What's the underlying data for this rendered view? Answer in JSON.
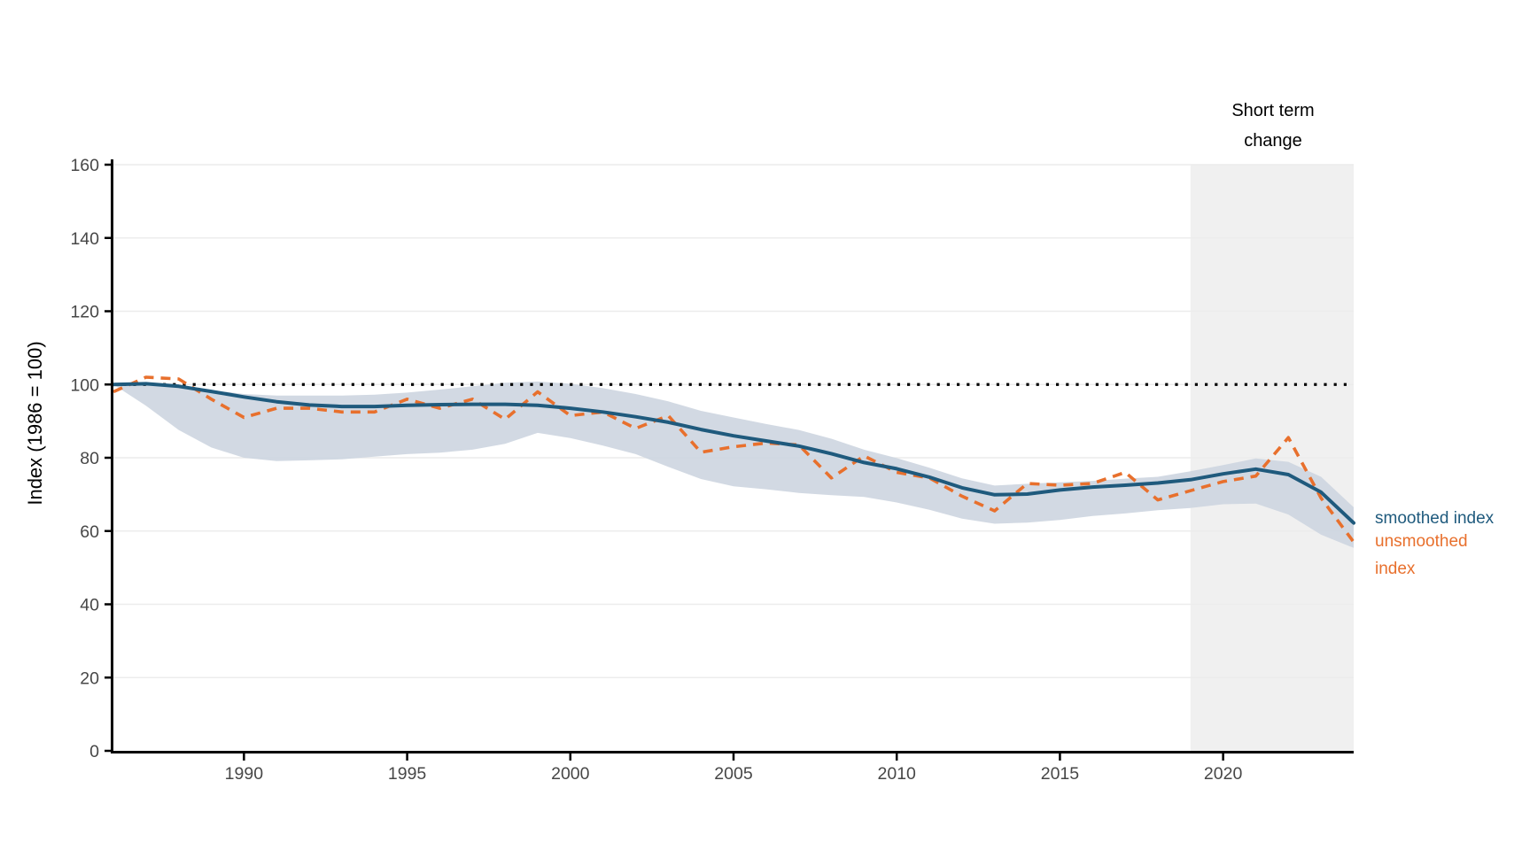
{
  "annotation": {
    "line1": "Short term",
    "line2": "change"
  },
  "legend": {
    "smoothed_label": "smoothed index",
    "unsmoothed_label_line1": "unsmoothed",
    "unsmoothed_label_line2": "index"
  },
  "axis": {
    "y_title": "Index (1986 = 100)"
  },
  "colors": {
    "smoothed_line": "#1f5a7d",
    "unsmoothed_line": "#e8702d",
    "legend_smoothed_text": "#1f5a7d",
    "legend_unsmoothed_text": "#e8702d",
    "confidence_band": "#cdd5e0",
    "short_term_region": "#f0f0f0",
    "gridline": "#ececec",
    "axis_line": "#000000",
    "tick_label": "#474747",
    "reference_line": "#000000"
  },
  "chart_data": {
    "type": "line",
    "title": "",
    "xlabel": "",
    "ylabel": "Index (1986 = 100)",
    "xlim": [
      1986,
      2024
    ],
    "ylim": [
      0,
      160
    ],
    "x_ticks": [
      1990,
      1995,
      2000,
      2005,
      2010,
      2015,
      2020
    ],
    "y_ticks": [
      0,
      20,
      40,
      60,
      80,
      100,
      120,
      140,
      160
    ],
    "grid": "horizontal",
    "legend_position": "right",
    "reference_line": {
      "value": 100,
      "style": "dotted"
    },
    "shaded_region": {
      "label": "Short term change",
      "x_start": 2019,
      "x_end": 2024
    },
    "x": [
      1986,
      1987,
      1988,
      1989,
      1990,
      1991,
      1992,
      1993,
      1994,
      1995,
      1996,
      1997,
      1998,
      1999,
      2000,
      2001,
      2002,
      2003,
      2004,
      2005,
      2006,
      2007,
      2008,
      2009,
      2010,
      2011,
      2012,
      2013,
      2014,
      2015,
      2016,
      2017,
      2018,
      2019,
      2020,
      2021,
      2022,
      2023,
      2024
    ],
    "series": [
      {
        "name": "smoothed index",
        "style": "solid",
        "values": [
          100,
          100.2,
          99.5,
          98.1,
          96.6,
          95.3,
          94.4,
          94.0,
          94.0,
          94.3,
          94.5,
          94.6,
          94.6,
          94.3,
          93.5,
          92.5,
          91.2,
          89.7,
          87.7,
          86.0,
          84.6,
          83.2,
          81.1,
          78.7,
          77.0,
          74.7,
          71.8,
          69.9,
          70.1,
          71.2,
          72.0,
          72.5,
          73.1,
          74.0,
          75.6,
          76.9,
          75.4,
          70.6,
          62.2
        ]
      },
      {
        "name": "unsmoothed index",
        "style": "dashed",
        "values": [
          98,
          102,
          101.5,
          96,
          91,
          93.5,
          93.5,
          92.5,
          92.5,
          96,
          93.5,
          96,
          90.5,
          98,
          91.5,
          92.5,
          88,
          91.5,
          81.5,
          83,
          84,
          83.5,
          74.5,
          80.5,
          76,
          74.5,
          69.5,
          65.5,
          73,
          72.5,
          73,
          76,
          68.5,
          71,
          73.5,
          75,
          85.5,
          69,
          57
        ]
      },
      {
        "name": "confidence band upper",
        "style": "area-edge",
        "values": [
          100,
          100.4,
          100.0,
          98.5,
          97.4,
          97.0,
          97.0,
          97.0,
          97.2,
          97.8,
          98.6,
          99.5,
          100.5,
          100.8,
          100.2,
          99.0,
          97.4,
          95.4,
          92.8,
          91.0,
          89.2,
          87.6,
          85.2,
          82.2,
          79.9,
          77.3,
          74.4,
          72.4,
          72.9,
          73.3,
          73.7,
          74.3,
          74.8,
          76.3,
          78.0,
          79.8,
          78.9,
          74.8,
          66.5
        ]
      },
      {
        "name": "confidence band lower",
        "style": "area-edge",
        "values": [
          100,
          94.2,
          87.6,
          82.8,
          80.0,
          79.1,
          79.3,
          79.6,
          80.3,
          81.0,
          81.4,
          82.2,
          83.8,
          86.8,
          85.4,
          83.3,
          81.0,
          77.5,
          74.2,
          72.2,
          71.4,
          70.4,
          69.8,
          69.3,
          67.8,
          65.8,
          63.4,
          62.0,
          62.3,
          63.0,
          64.1,
          64.8,
          65.7,
          66.3,
          67.3,
          67.5,
          64.5,
          59.0,
          55.4
        ]
      }
    ]
  }
}
